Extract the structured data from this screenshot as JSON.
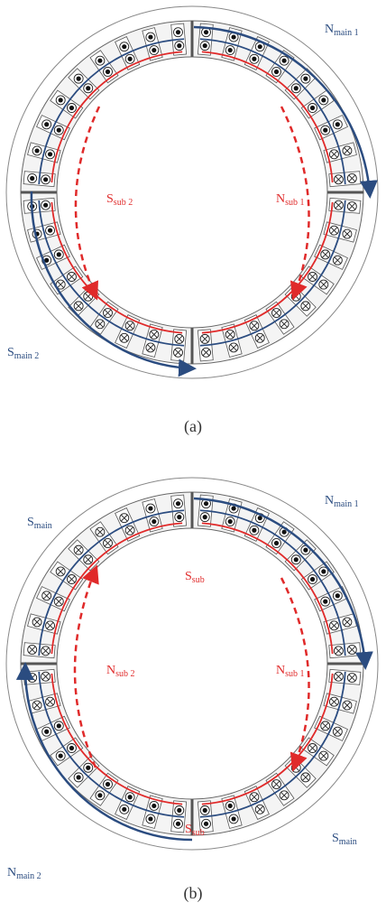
{
  "figure_a": {
    "labels": [
      {
        "base": "N",
        "sub": "main 1"
      },
      {
        "base": "S",
        "sub": "sub 2"
      },
      {
        "base": "N",
        "sub": "sub 1"
      },
      {
        "base": "S",
        "sub": "main 2"
      }
    ],
    "caption": "(a)"
  },
  "figure_b": {
    "labels": [
      {
        "base": "S",
        "sub": "main"
      },
      {
        "base": "N",
        "sub": "main 1"
      },
      {
        "base": "S",
        "sub": "sub"
      },
      {
        "base": "N",
        "sub": "sub 2"
      },
      {
        "base": "N",
        "sub": "sub 1"
      },
      {
        "base": "S",
        "sub": "sub"
      },
      {
        "base": "S",
        "sub": "main"
      },
      {
        "base": "N",
        "sub": "main 2"
      }
    ],
    "caption": "(b)"
  }
}
